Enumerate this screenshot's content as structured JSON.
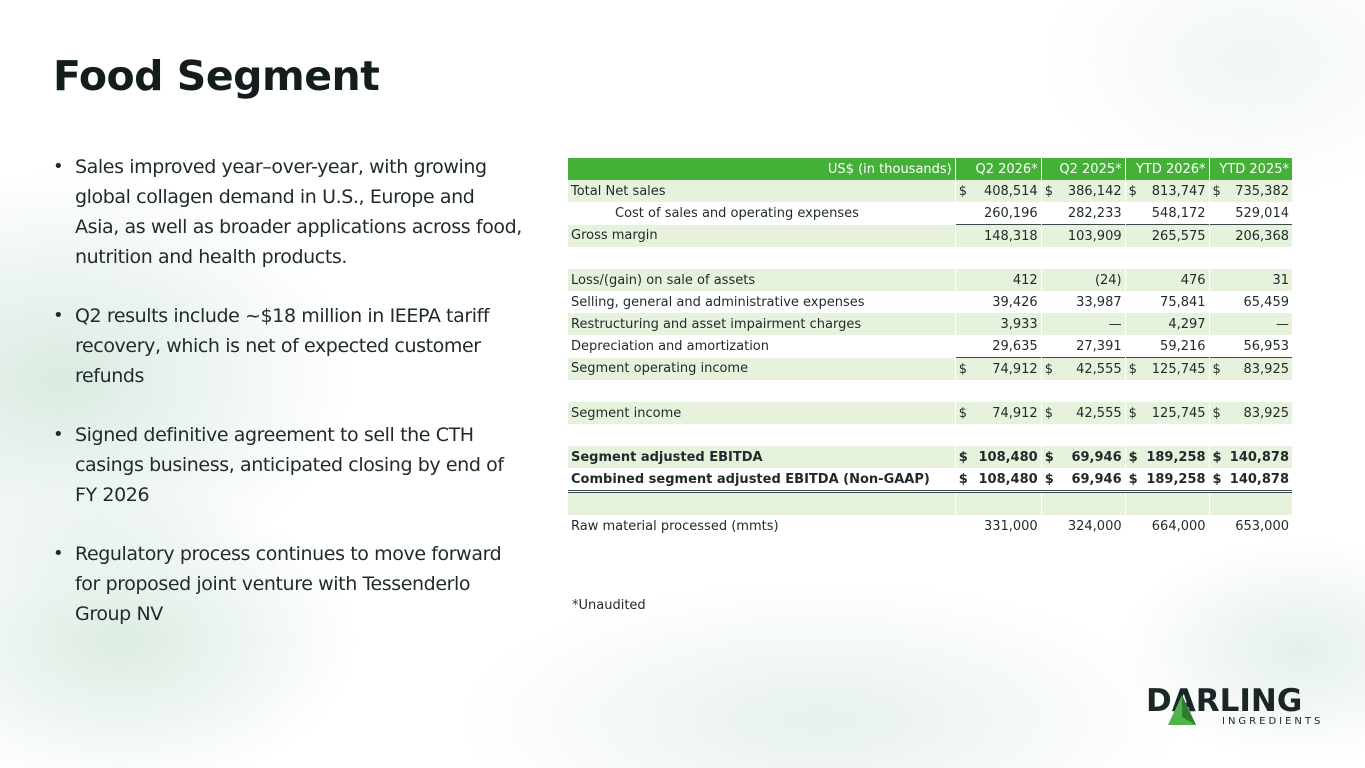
{
  "title": "Food Segment",
  "bullets": [
    "Sales improved year–over-year, with growing global collagen demand in U.S., Europe and Asia, as well as broader applications across food, nutrition and health products.",
    "Q2 results include ~$18 million in IEEPA tariff recovery, which is net of expected customer refunds",
    "Signed definitive agreement to sell the CTH casings business, anticipated closing by end of FY 2026",
    "Regulatory process continues to move forward for proposed joint venture with Tessenderlo Group NV"
  ],
  "table": {
    "header": [
      "US$ (in thousands)",
      "Q2 2026*",
      "Q2 2025*",
      "YTD 2026*",
      "YTD 2025*"
    ],
    "currency_symbol": "$",
    "rows": {
      "total_net_sales": {
        "label": "Total Net sales",
        "values": [
          "408,514",
          "386,142",
          "813,747",
          "735,382"
        ]
      },
      "cost_of_sales": {
        "label": "Cost of sales and operating expenses",
        "values": [
          "260,196",
          "282,233",
          "548,172",
          "529,014"
        ]
      },
      "gross_margin": {
        "label": "Gross margin",
        "values": [
          "148,318",
          "103,909",
          "265,575",
          "206,368"
        ]
      },
      "loss_gain": {
        "label": "Loss/(gain) on sale of assets",
        "values": [
          "412",
          "(24)",
          "476",
          "31"
        ]
      },
      "sga": {
        "label": "Selling, general and administrative expenses",
        "values": [
          "39,426",
          "33,987",
          "75,841",
          "65,459"
        ]
      },
      "restructuring": {
        "label": "Restructuring and asset impairment charges",
        "values": [
          "3,933",
          "—",
          "4,297",
          "—"
        ]
      },
      "depreciation": {
        "label": "Depreciation and amortization",
        "values": [
          "29,635",
          "27,391",
          "59,216",
          "56,953"
        ]
      },
      "segment_operating_income": {
        "label": "Segment operating income",
        "values": [
          "74,912",
          "42,555",
          "125,745",
          "83,925"
        ]
      },
      "segment_income": {
        "label": "Segment income",
        "values": [
          "74,912",
          "42,555",
          "125,745",
          "83,925"
        ]
      },
      "segment_adj_ebitda": {
        "label": "Segment adjusted EBITDA",
        "values": [
          "108,480",
          "69,946",
          "189,258",
          "140,878"
        ]
      },
      "combined_adj_ebitda": {
        "label": "Combined segment adjusted EBITDA (Non-GAAP)",
        "values": [
          "108,480",
          "69,946",
          "189,258",
          "140,878"
        ]
      },
      "raw_material": {
        "label": "Raw material processed (mmts)",
        "values": [
          "331,000",
          "324,000",
          "664,000",
          "653,000"
        ]
      }
    }
  },
  "footnote": "*Unaudited",
  "logo": {
    "word": "DARLING",
    "sub": "INGREDIENTS"
  },
  "colors": {
    "header_green": "#45b038",
    "row_shade": "#e6f2dc",
    "logo_green": "#4fb447"
  }
}
